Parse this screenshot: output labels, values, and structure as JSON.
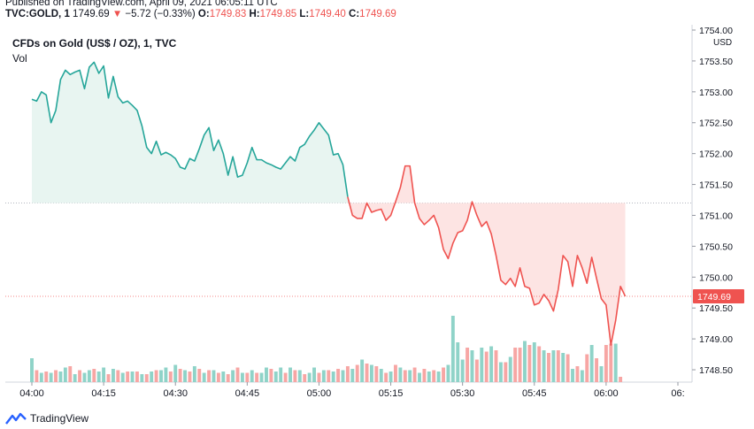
{
  "published": "Published on TradingView.com, April 09, 2021 06:05:11 UTC",
  "quote": {
    "symbol": "TVC:GOLD, 1",
    "last": "1749.69",
    "arrow": "▼",
    "change": "−5.72 (−0.33%)",
    "o_label": "O:",
    "o": "1749.83",
    "h_label": "H:",
    "h": "1749.85",
    "l_label": "L:",
    "l": "1749.40",
    "c_label": "C:",
    "c": "1749.69"
  },
  "legend": {
    "title": "CFDs on Gold (US$ / OZ), 1, TVC",
    "vol": "Vol"
  },
  "footer": {
    "brand": "TradingView"
  },
  "colors": {
    "up": "#26a69a",
    "down": "#ef5350",
    "up_fill": "#e8f5f1",
    "down_fill": "#fde4e3",
    "vol_up": "#8fd3c8",
    "vol_down": "#f7a6a4",
    "grid": "#f0f3fa",
    "axis_text": "#131722"
  },
  "chart_data": {
    "type": "area",
    "currency_label": "USD",
    "last_price_label": "1749.69",
    "reference_price": 1751.2,
    "ylim": [
      1748.3,
      1754.0
    ],
    "y_ticks": [
      "1754.00",
      "1753.50",
      "1753.00",
      "1752.50",
      "1752.00",
      "1751.50",
      "1751.00",
      "1750.50",
      "1750.00",
      "1749.50",
      "1749.00",
      "1748.50"
    ],
    "x_ticks": [
      "04:00",
      "04:15",
      "04:30",
      "04:45",
      "05:00",
      "05:15",
      "05:30",
      "05:45",
      "06:00",
      "06:"
    ],
    "x_tick_minutes": [
      0,
      15,
      30,
      45,
      60,
      75,
      90,
      105,
      120,
      135
    ],
    "price": [
      [
        0,
        1752.88
      ],
      [
        1,
        1752.85
      ],
      [
        2,
        1753.0
      ],
      [
        3,
        1752.95
      ],
      [
        4,
        1752.5
      ],
      [
        5,
        1752.7
      ],
      [
        6,
        1753.2
      ],
      [
        7,
        1753.35
      ],
      [
        8,
        1753.28
      ],
      [
        9,
        1753.32
      ],
      [
        10,
        1753.35
      ],
      [
        11,
        1753.05
      ],
      [
        12,
        1753.4
      ],
      [
        13,
        1753.48
      ],
      [
        14,
        1753.3
      ],
      [
        15,
        1753.42
      ],
      [
        16,
        1752.9
      ],
      [
        17,
        1753.25
      ],
      [
        18,
        1752.92
      ],
      [
        19,
        1752.82
      ],
      [
        20,
        1752.85
      ],
      [
        21,
        1752.78
      ],
      [
        22,
        1752.7
      ],
      [
        23,
        1752.45
      ],
      [
        24,
        1752.1
      ],
      [
        25,
        1752.0
      ],
      [
        26,
        1752.2
      ],
      [
        27,
        1751.98
      ],
      [
        28,
        1752.02
      ],
      [
        29,
        1751.98
      ],
      [
        30,
        1751.92
      ],
      [
        31,
        1751.78
      ],
      [
        32,
        1751.75
      ],
      [
        33,
        1751.92
      ],
      [
        34,
        1751.88
      ],
      [
        35,
        1752.08
      ],
      [
        36,
        1752.3
      ],
      [
        37,
        1752.42
      ],
      [
        38,
        1752.05
      ],
      [
        39,
        1752.22
      ],
      [
        40,
        1752.0
      ],
      [
        41,
        1751.65
      ],
      [
        42,
        1751.95
      ],
      [
        43,
        1751.62
      ],
      [
        44,
        1751.65
      ],
      [
        45,
        1751.85
      ],
      [
        46,
        1752.1
      ],
      [
        47,
        1751.9
      ],
      [
        48,
        1751.9
      ],
      [
        49,
        1751.85
      ],
      [
        50,
        1751.82
      ],
      [
        51,
        1751.78
      ],
      [
        52,
        1751.75
      ],
      [
        53,
        1751.85
      ],
      [
        54,
        1751.95
      ],
      [
        55,
        1751.88
      ],
      [
        56,
        1752.1
      ],
      [
        57,
        1752.15
      ],
      [
        58,
        1752.28
      ],
      [
        59,
        1752.38
      ],
      [
        60,
        1752.5
      ],
      [
        61,
        1752.4
      ],
      [
        62,
        1752.3
      ],
      [
        63,
        1751.98
      ],
      [
        64,
        1752.0
      ],
      [
        65,
        1751.82
      ],
      [
        66,
        1751.3
      ],
      [
        67,
        1751.0
      ],
      [
        68,
        1750.95
      ],
      [
        69,
        1750.95
      ],
      [
        70,
        1751.2
      ],
      [
        71,
        1751.05
      ],
      [
        72,
        1751.08
      ],
      [
        73,
        1751.1
      ],
      [
        74,
        1750.92
      ],
      [
        75,
        1751.0
      ],
      [
        76,
        1751.22
      ],
      [
        77,
        1751.45
      ],
      [
        78,
        1751.8
      ],
      [
        79,
        1751.8
      ],
      [
        80,
        1751.2
      ],
      [
        81,
        1750.95
      ],
      [
        82,
        1750.85
      ],
      [
        83,
        1750.92
      ],
      [
        84,
        1751.0
      ],
      [
        85,
        1750.8
      ],
      [
        86,
        1750.45
      ],
      [
        87,
        1750.3
      ],
      [
        88,
        1750.55
      ],
      [
        89,
        1750.72
      ],
      [
        90,
        1750.75
      ],
      [
        91,
        1750.92
      ],
      [
        92,
        1751.22
      ],
      [
        93,
        1751.0
      ],
      [
        94,
        1750.82
      ],
      [
        95,
        1750.9
      ],
      [
        96,
        1750.7
      ],
      [
        97,
        1750.35
      ],
      [
        98,
        1749.95
      ],
      [
        99,
        1749.88
      ],
      [
        100,
        1749.98
      ],
      [
        101,
        1749.85
      ],
      [
        102,
        1750.15
      ],
      [
        103,
        1749.85
      ],
      [
        104,
        1749.82
      ],
      [
        105,
        1749.55
      ],
      [
        106,
        1749.58
      ],
      [
        107,
        1749.72
      ],
      [
        108,
        1749.62
      ],
      [
        109,
        1749.45
      ],
      [
        110,
        1749.8
      ],
      [
        111,
        1750.35
      ],
      [
        112,
        1750.25
      ],
      [
        113,
        1749.85
      ],
      [
        114,
        1750.35
      ],
      [
        115,
        1750.15
      ],
      [
        116,
        1749.9
      ],
      [
        117,
        1750.32
      ],
      [
        118,
        1749.98
      ],
      [
        119,
        1749.65
      ],
      [
        120,
        1749.55
      ],
      [
        121,
        1748.9
      ],
      [
        122,
        1749.3
      ],
      [
        123,
        1749.85
      ],
      [
        124,
        1749.69
      ]
    ],
    "volume": [
      [
        0,
        36,
        "up"
      ],
      [
        1,
        18,
        "down"
      ],
      [
        2,
        14,
        "up"
      ],
      [
        3,
        16,
        "down"
      ],
      [
        4,
        14,
        "up"
      ],
      [
        5,
        18,
        "down"
      ],
      [
        6,
        16,
        "up"
      ],
      [
        7,
        22,
        "up"
      ],
      [
        8,
        24,
        "down"
      ],
      [
        9,
        12,
        "up"
      ],
      [
        10,
        18,
        "down"
      ],
      [
        11,
        14,
        "up"
      ],
      [
        12,
        18,
        "up"
      ],
      [
        13,
        20,
        "down"
      ],
      [
        14,
        16,
        "up"
      ],
      [
        15,
        22,
        "up"
      ],
      [
        16,
        12,
        "down"
      ],
      [
        17,
        20,
        "up"
      ],
      [
        18,
        18,
        "down"
      ],
      [
        19,
        14,
        "up"
      ],
      [
        20,
        16,
        "down"
      ],
      [
        21,
        16,
        "up"
      ],
      [
        22,
        16,
        "down"
      ],
      [
        23,
        12,
        "up"
      ],
      [
        24,
        12,
        "down"
      ],
      [
        25,
        16,
        "up"
      ],
      [
        26,
        18,
        "down"
      ],
      [
        27,
        18,
        "up"
      ],
      [
        28,
        22,
        "up"
      ],
      [
        29,
        16,
        "down"
      ],
      [
        30,
        26,
        "up"
      ],
      [
        31,
        20,
        "down"
      ],
      [
        32,
        18,
        "up"
      ],
      [
        33,
        16,
        "down"
      ],
      [
        34,
        24,
        "up"
      ],
      [
        35,
        20,
        "down"
      ],
      [
        36,
        14,
        "up"
      ],
      [
        37,
        18,
        "down"
      ],
      [
        38,
        18,
        "up"
      ],
      [
        39,
        14,
        "down"
      ],
      [
        40,
        16,
        "up"
      ],
      [
        41,
        12,
        "down"
      ],
      [
        42,
        18,
        "up"
      ],
      [
        43,
        22,
        "down"
      ],
      [
        44,
        14,
        "up"
      ],
      [
        45,
        14,
        "down"
      ],
      [
        46,
        18,
        "up"
      ],
      [
        47,
        14,
        "down"
      ],
      [
        48,
        14,
        "up"
      ],
      [
        49,
        22,
        "up"
      ],
      [
        50,
        20,
        "down"
      ],
      [
        51,
        16,
        "up"
      ],
      [
        52,
        22,
        "up"
      ],
      [
        53,
        14,
        "down"
      ],
      [
        54,
        22,
        "up"
      ],
      [
        55,
        18,
        "down"
      ],
      [
        56,
        18,
        "up"
      ],
      [
        57,
        12,
        "down"
      ],
      [
        58,
        14,
        "up"
      ],
      [
        59,
        22,
        "up"
      ],
      [
        60,
        14,
        "down"
      ],
      [
        61,
        18,
        "up"
      ],
      [
        62,
        18,
        "down"
      ],
      [
        63,
        16,
        "up"
      ],
      [
        64,
        20,
        "down"
      ],
      [
        65,
        18,
        "up"
      ],
      [
        66,
        24,
        "down"
      ],
      [
        67,
        20,
        "up"
      ],
      [
        68,
        26,
        "down"
      ],
      [
        69,
        34,
        "up"
      ],
      [
        70,
        28,
        "down"
      ],
      [
        71,
        26,
        "up"
      ],
      [
        72,
        24,
        "down"
      ],
      [
        73,
        20,
        "up"
      ],
      [
        74,
        14,
        "down"
      ],
      [
        75,
        16,
        "up"
      ],
      [
        76,
        26,
        "down"
      ],
      [
        77,
        22,
        "up"
      ],
      [
        78,
        18,
        "down"
      ],
      [
        79,
        18,
        "up"
      ],
      [
        80,
        22,
        "down"
      ],
      [
        81,
        14,
        "up"
      ],
      [
        82,
        20,
        "down"
      ],
      [
        83,
        16,
        "up"
      ],
      [
        84,
        18,
        "down"
      ],
      [
        85,
        16,
        "up"
      ],
      [
        86,
        22,
        "down"
      ],
      [
        87,
        26,
        "up"
      ],
      [
        88,
        100,
        "up"
      ],
      [
        89,
        60,
        "up"
      ],
      [
        90,
        34,
        "up"
      ],
      [
        91,
        52,
        "down"
      ],
      [
        92,
        48,
        "up"
      ],
      [
        93,
        34,
        "down"
      ],
      [
        94,
        52,
        "up"
      ],
      [
        95,
        46,
        "down"
      ],
      [
        96,
        54,
        "up"
      ],
      [
        97,
        48,
        "down"
      ],
      [
        98,
        30,
        "up"
      ],
      [
        99,
        30,
        "down"
      ],
      [
        100,
        38,
        "up"
      ],
      [
        101,
        52,
        "down"
      ],
      [
        102,
        52,
        "down"
      ],
      [
        103,
        62,
        "up"
      ],
      [
        104,
        56,
        "down"
      ],
      [
        105,
        60,
        "up"
      ],
      [
        106,
        54,
        "down"
      ],
      [
        107,
        48,
        "up"
      ],
      [
        108,
        44,
        "down"
      ],
      [
        109,
        48,
        "up"
      ],
      [
        110,
        48,
        "down"
      ],
      [
        111,
        44,
        "up"
      ],
      [
        112,
        42,
        "down"
      ],
      [
        113,
        20,
        "up"
      ],
      [
        114,
        24,
        "down"
      ],
      [
        115,
        18,
        "up"
      ],
      [
        116,
        42,
        "down"
      ],
      [
        117,
        56,
        "up"
      ],
      [
        118,
        36,
        "down"
      ],
      [
        119,
        24,
        "up"
      ],
      [
        120,
        56,
        "down"
      ],
      [
        121,
        58,
        "down"
      ],
      [
        122,
        58,
        "up"
      ],
      [
        123,
        8,
        "down"
      ]
    ]
  }
}
